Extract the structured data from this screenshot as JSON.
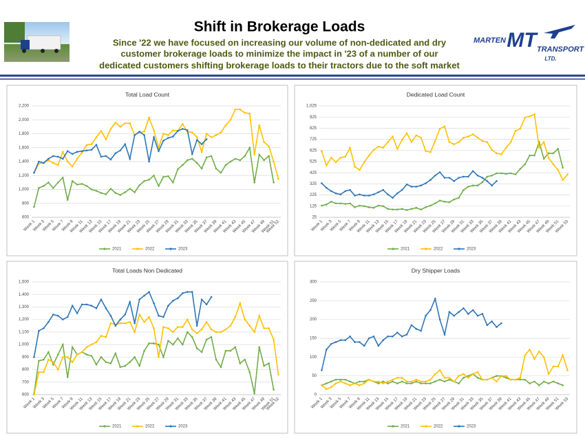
{
  "header": {
    "title": "Shift in Brokerage Loads",
    "subtitle": [
      "Since '22 we have focused on increasing our volume of non-dedicated and dry",
      "customer brokerage loads to minimize the impact in '23 of a number of our",
      "dedicated customers shifting brokerage loads to their tractors due to the soft market"
    ]
  },
  "logo": {
    "left": "MARTEN",
    "mark": "MT",
    "right": "TRANSPORT",
    "suffix": "LTD."
  },
  "chart_data": [
    {
      "type": "line",
      "title": "Total Load Count",
      "categories": [
        "Week 1",
        null,
        "Week 3",
        null,
        "Week 5",
        null,
        "Week 7",
        null,
        "Week 9",
        null,
        "Week 11",
        null,
        "Week 13",
        null,
        "Week 15",
        null,
        "Week 17",
        null,
        "Week 19",
        null,
        "Week 21",
        null,
        "Week 23",
        null,
        "Week 25",
        null,
        "Week 27",
        null,
        "Week 29",
        null,
        "Week 31",
        null,
        "Week 33",
        null,
        "Week 35",
        null,
        "Week 37",
        null,
        "Week 39",
        null,
        "Week 41",
        null,
        "Week 43",
        null,
        "Week 45",
        null,
        "Week 47",
        null,
        "Week 49",
        null,
        "Week 51",
        "Week 52"
      ],
      "ylim": [
        600,
        2200
      ],
      "yticks": [
        600,
        800,
        {
          "value": 1000,
          "label": "1,000"
        },
        {
          "value": 1200,
          "label": "1,200"
        },
        {
          "value": 1400,
          "label": "1,400"
        },
        {
          "value": 1600,
          "label": "1,600"
        },
        {
          "value": 1800,
          "label": "1,800"
        },
        {
          "value": 2000,
          "label": "2,000"
        },
        {
          "value": 2200,
          "label": "2,200"
        }
      ],
      "grid": true,
      "series": [
        {
          "name": "2021",
          "color": "#70ad47",
          "values": [
            750,
            1020,
            1050,
            1100,
            1020,
            1100,
            1170,
            850,
            1120,
            1070,
            1080,
            1050,
            1000,
            980,
            950,
            930,
            1010,
            950,
            920,
            960,
            1010,
            960,
            1060,
            1120,
            1140,
            1200,
            1050,
            1180,
            1190,
            1100,
            1290,
            1350,
            1420,
            1440,
            1380,
            1300,
            1460,
            1480,
            1300,
            1240,
            1350,
            1400,
            1440,
            1420,
            1480,
            1600,
            1100,
            1500,
            1420,
            1480,
            1100,
            null
          ]
        },
        {
          "name": "2022",
          "color": "#ffc000",
          "values": [
            1240,
            1370,
            1380,
            1420,
            1380,
            1350,
            1540,
            1400,
            1330,
            1440,
            1530,
            1640,
            1650,
            1750,
            1840,
            1720,
            1870,
            1960,
            1900,
            1950,
            1950,
            1780,
            1820,
            1830,
            2030,
            1850,
            1600,
            1800,
            1780,
            1850,
            1840,
            1940,
            1830,
            1820,
            1750,
            1540,
            1800,
            1750,
            1780,
            1820,
            1920,
            2000,
            2150,
            2150,
            2100,
            2090,
            1500,
            1920,
            1680,
            1620,
            1400,
            1150
          ]
        },
        {
          "name": "2023",
          "color": "#2e75b6",
          "values": [
            1240,
            1400,
            1380,
            1440,
            1480,
            1470,
            1440,
            1550,
            1510,
            1540,
            1550,
            1560,
            1570,
            1640,
            1470,
            1480,
            1430,
            1520,
            1560,
            1650,
            1440,
            1780,
            1830,
            1780,
            1400,
            1750,
            1550,
            1700,
            1740,
            1760,
            1840,
            1870,
            1850,
            1510,
            1710,
            1650,
            1720,
            null,
            null,
            null,
            null,
            null,
            null,
            null,
            null,
            null,
            null,
            null,
            null,
            null,
            null,
            null
          ]
        }
      ]
    },
    {
      "type": "line",
      "title": "Dedicated Load Count",
      "categories": [
        "Week 1",
        null,
        "Week 3",
        null,
        "Week 5",
        null,
        "Week 7",
        null,
        "Week 9",
        null,
        "Week 11",
        null,
        "Week 13",
        null,
        "Week 15",
        null,
        "Week 17",
        null,
        "Week 19",
        null,
        "Week 21",
        null,
        "Week 23",
        null,
        "Week 25",
        null,
        "Week 27",
        null,
        "Week 29",
        null,
        "Week 31",
        null,
        "Week 33",
        null,
        "Week 35",
        null,
        "Week 37",
        null,
        "Week 39",
        null,
        "Week 41",
        null,
        "Week 43",
        null,
        "Week 45",
        null,
        "Week 47",
        null,
        "Week 49",
        null,
        "Week 51",
        null,
        "Week 53"
      ],
      "ylim": [
        25,
        1025
      ],
      "yticks": [
        25,
        125,
        225,
        325,
        425,
        525,
        625,
        725,
        825,
        925,
        {
          "value": 1025,
          "label": "1,025"
        }
      ],
      "grid": true,
      "series": [
        {
          "name": "2021",
          "color": "#70ad47",
          "values": [
            130,
            140,
            165,
            150,
            150,
            145,
            150,
            115,
            130,
            125,
            115,
            110,
            130,
            125,
            100,
            95,
            95,
            100,
            90,
            100,
            110,
            95,
            115,
            130,
            150,
            175,
            165,
            160,
            185,
            200,
            270,
            300,
            310,
            310,
            340,
            390,
            400,
            420,
            420,
            415,
            420,
            410,
            460,
            500,
            580,
            580,
            700,
            550,
            600,
            600,
            640,
            470,
            null
          ]
        },
        {
          "name": "2022",
          "color": "#ffc000",
          "values": [
            620,
            490,
            560,
            520,
            560,
            570,
            650,
            480,
            450,
            520,
            580,
            630,
            660,
            650,
            700,
            750,
            640,
            720,
            780,
            700,
            760,
            740,
            620,
            610,
            710,
            820,
            840,
            700,
            680,
            700,
            740,
            750,
            770,
            740,
            710,
            700,
            630,
            600,
            590,
            650,
            700,
            800,
            820,
            920,
            930,
            950,
            650,
            700,
            560,
            500,
            450,
            360,
            410
          ]
        },
        {
          "name": "2023",
          "color": "#2e75b6",
          "values": [
            330,
            290,
            260,
            240,
            230,
            260,
            270,
            220,
            230,
            220,
            220,
            230,
            250,
            270,
            230,
            200,
            240,
            270,
            320,
            300,
            300,
            310,
            330,
            360,
            400,
            430,
            380,
            380,
            350,
            380,
            390,
            390,
            440,
            400,
            380,
            350,
            310,
            350,
            null,
            null,
            null,
            null,
            null,
            null,
            null,
            null,
            null,
            null,
            null,
            null,
            null,
            null,
            null
          ]
        }
      ]
    },
    {
      "type": "line",
      "title": "Total Loads Non Dedicated",
      "categories": [
        "Week 1",
        null,
        "Week 3",
        null,
        "Week 5",
        null,
        "Week 7",
        null,
        "Week 9",
        null,
        "Week 11",
        null,
        "Week 13",
        null,
        "Week 15",
        null,
        "Week 17",
        null,
        "Week 19",
        null,
        "Week 21",
        null,
        "Week 23",
        null,
        "Week 25",
        null,
        "Week 27",
        null,
        "Week 29",
        null,
        "Week 31",
        null,
        "Week 33",
        null,
        "Week 35",
        null,
        "Week 37",
        null,
        "Week 39",
        null,
        "Week 41",
        null,
        "Week 43",
        null,
        "Week 45",
        null,
        "Week 47",
        null,
        "Week 49",
        null,
        "Week 51",
        "Week 52"
      ],
      "ylim": [
        600,
        1500
      ],
      "yticks": [
        600,
        700,
        800,
        900,
        {
          "value": 1000,
          "label": "1,000"
        },
        {
          "value": 1100,
          "label": "1,100"
        },
        {
          "value": 1200,
          "label": "1,200"
        },
        {
          "value": 1300,
          "label": "1,300"
        },
        {
          "value": 1400,
          "label": "1,400"
        },
        {
          "value": 1500,
          "label": "1,500"
        }
      ],
      "grid": true,
      "series": [
        {
          "name": "2021",
          "color": "#70ad47",
          "values": [
            610,
            870,
            880,
            940,
            840,
            920,
            1000,
            740,
            980,
            920,
            940,
            920,
            910,
            840,
            900,
            860,
            850,
            930,
            820,
            830,
            860,
            900,
            830,
            950,
            1010,
            1010,
            1000,
            900,
            1030,
            1000,
            1050,
            1000,
            1100,
            1060,
            970,
            940,
            1040,
            1060,
            880,
            820,
            950,
            950,
            980,
            850,
            880,
            780,
            610,
            980,
            830,
            850,
            640,
            null
          ]
        },
        {
          "name": "2022",
          "color": "#ffc000",
          "values": [
            600,
            780,
            780,
            880,
            860,
            800,
            900,
            900,
            860,
            920,
            940,
            980,
            1000,
            1020,
            1070,
            1060,
            1170,
            1160,
            1170,
            1170,
            1180,
            1100,
            1240,
            1180,
            1220,
            1130,
            900,
            1140,
            1130,
            1100,
            1140,
            1140,
            1200,
            1120,
            1090,
            1120,
            1180,
            1120,
            1100,
            1100,
            1120,
            1150,
            1220,
            1330,
            1200,
            1150,
            1100,
            1230,
            1130,
            1130,
            1040,
            760
          ]
        },
        {
          "name": "2023",
          "color": "#2e75b6",
          "values": [
            900,
            1110,
            1130,
            1180,
            1240,
            1230,
            1200,
            1220,
            1310,
            1250,
            1320,
            1320,
            1310,
            1290,
            1360,
            1290,
            1230,
            1150,
            1200,
            1240,
            1340,
            1170,
            1360,
            1390,
            1420,
            1330,
            1230,
            1220,
            1310,
            1350,
            1370,
            1410,
            1420,
            1420,
            1150,
            1360,
            1320,
            1380,
            null,
            null,
            null,
            null,
            null,
            null,
            null,
            null,
            null,
            null,
            null,
            null,
            null,
            null
          ]
        }
      ]
    },
    {
      "type": "line",
      "title": "Dry Shipper Loads",
      "categories": [
        "Week 1",
        null,
        "Week 3",
        null,
        "Week 5",
        null,
        "Week 7",
        null,
        "Week 9",
        null,
        "Week 11",
        null,
        "Week 13",
        null,
        "Week 15",
        null,
        "Week 17",
        null,
        "Week 19",
        null,
        "Week 21",
        null,
        "Week 23",
        null,
        "Week 25",
        null,
        "Week 27",
        null,
        "Week 29",
        null,
        "Week 31",
        null,
        "Week 33",
        null,
        "Week 35",
        null,
        "Week 37",
        null,
        "Week 39",
        null,
        "Week 41",
        null,
        "Week 43",
        null,
        "Week 45",
        null,
        "Week 47",
        null,
        "Week 49",
        null,
        "Week 51",
        null,
        "Week 53"
      ],
      "ylim": [
        0,
        300
      ],
      "yticks": [
        0,
        50,
        100,
        150,
        200,
        250,
        300
      ],
      "grid": true,
      "series": [
        {
          "name": "2021",
          "color": "#70ad47",
          "values": [
            25,
            30,
            35,
            40,
            40,
            40,
            35,
            30,
            35,
            35,
            40,
            35,
            30,
            35,
            30,
            35,
            30,
            35,
            30,
            30,
            35,
            30,
            30,
            30,
            35,
            40,
            35,
            40,
            35,
            30,
            45,
            50,
            55,
            45,
            40,
            40,
            45,
            50,
            50,
            45,
            40,
            40,
            40,
            40,
            30,
            35,
            25,
            35,
            30,
            35,
            30,
            25,
            null
          ]
        },
        {
          "name": "2022",
          "color": "#ffc000",
          "values": [
            25,
            15,
            20,
            30,
            35,
            30,
            25,
            30,
            25,
            30,
            40,
            35,
            35,
            30,
            35,
            40,
            45,
            45,
            35,
            35,
            40,
            35,
            35,
            40,
            55,
            65,
            45,
            45,
            35,
            50,
            55,
            45,
            55,
            60,
            40,
            40,
            45,
            35,
            50,
            50,
            40,
            40,
            45,
            105,
            120,
            95,
            115,
            100,
            55,
            75,
            75,
            105,
            65
          ]
        },
        {
          "name": "2023",
          "color": "#2e75b6",
          "values": [
            65,
            120,
            135,
            140,
            145,
            145,
            155,
            140,
            140,
            130,
            150,
            155,
            130,
            145,
            155,
            155,
            165,
            155,
            160,
            185,
            175,
            170,
            210,
            225,
            255,
            200,
            160,
            220,
            210,
            220,
            230,
            215,
            225,
            210,
            215,
            185,
            195,
            180,
            190,
            null,
            null,
            null,
            null,
            null,
            null,
            null,
            null,
            null,
            null,
            null,
            null,
            null,
            null
          ]
        }
      ]
    }
  ]
}
